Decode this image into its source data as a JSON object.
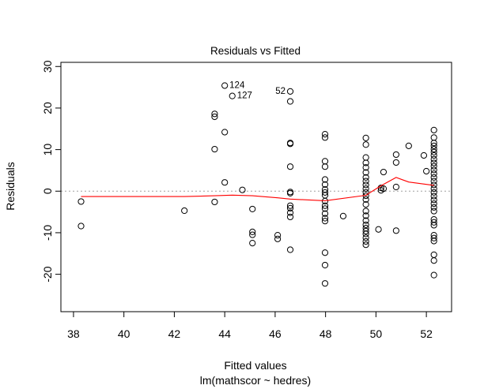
{
  "chart_data": {
    "type": "scatter",
    "title": "Residuals vs Fitted",
    "xlabel": "Fitted values",
    "subtitle": "lm(mathscor ~ hedres)",
    "ylabel": "Residuals",
    "xlim": [
      37.5,
      53
    ],
    "ylim": [
      -29,
      31
    ],
    "xticks": [
      38,
      40,
      42,
      44,
      46,
      48,
      50,
      52
    ],
    "yticks": [
      -20,
      -10,
      0,
      10,
      20,
      30
    ],
    "reference_line": {
      "y": 0,
      "style": "dotted",
      "color": "#a0a0a0"
    },
    "point_color": "#000000",
    "smooth_color": "#ff0000",
    "points": [
      [
        38.3,
        -2.5
      ],
      [
        38.3,
        -8.4
      ],
      [
        42.4,
        -4.7
      ],
      [
        43.6,
        18.6
      ],
      [
        43.6,
        17.9
      ],
      [
        43.6,
        10.1
      ],
      [
        43.6,
        -2.6
      ],
      [
        44.0,
        25.4
      ],
      [
        44.0,
        14.2
      ],
      [
        44.0,
        2.1
      ],
      [
        44.3,
        22.9
      ],
      [
        44.7,
        0.3
      ],
      [
        45.1,
        -4.3
      ],
      [
        45.1,
        -9.8
      ],
      [
        45.1,
        -10.5
      ],
      [
        45.1,
        -12.5
      ],
      [
        46.1,
        -10.6
      ],
      [
        46.1,
        -11.5
      ],
      [
        46.6,
        24.0
      ],
      [
        46.6,
        21.6
      ],
      [
        46.6,
        11.6
      ],
      [
        46.6,
        11.4
      ],
      [
        46.6,
        5.9
      ],
      [
        46.6,
        -0.2
      ],
      [
        46.6,
        -0.5
      ],
      [
        46.6,
        -3.5
      ],
      [
        46.6,
        -4.1
      ],
      [
        46.6,
        -5.2
      ],
      [
        46.6,
        -6.2
      ],
      [
        46.6,
        -14.1
      ],
      [
        47.98,
        13.7
      ],
      [
        47.98,
        12.9
      ],
      [
        47.98,
        7.2
      ],
      [
        47.98,
        5.9
      ],
      [
        47.98,
        2.8
      ],
      [
        47.98,
        1.6
      ],
      [
        47.98,
        0.4
      ],
      [
        47.98,
        -0.3
      ],
      [
        47.98,
        -1.0
      ],
      [
        47.98,
        -2.4
      ],
      [
        47.98,
        -3.5
      ],
      [
        47.98,
        -4.2
      ],
      [
        47.98,
        -5.4
      ],
      [
        47.98,
        -6.5
      ],
      [
        47.98,
        -7.2
      ],
      [
        47.98,
        -14.8
      ],
      [
        47.98,
        -17.8
      ],
      [
        47.98,
        -22.2
      ],
      [
        48.7,
        -6.0
      ],
      [
        49.6,
        12.8
      ],
      [
        49.6,
        11.2
      ],
      [
        49.6,
        8.1
      ],
      [
        49.6,
        6.8
      ],
      [
        49.6,
        5.7
      ],
      [
        49.6,
        4.5
      ],
      [
        49.6,
        3.3
      ],
      [
        49.6,
        2.4
      ],
      [
        49.6,
        1.5
      ],
      [
        49.6,
        0.6
      ],
      [
        49.6,
        -0.3
      ],
      [
        49.6,
        -1.1
      ],
      [
        49.6,
        -2.0
      ],
      [
        49.6,
        -3.2
      ],
      [
        49.6,
        -4.8
      ],
      [
        49.6,
        -5.9
      ],
      [
        49.6,
        -7.1
      ],
      [
        49.6,
        -8.1
      ],
      [
        49.6,
        -8.9
      ],
      [
        49.6,
        -9.6
      ],
      [
        49.6,
        -10.3
      ],
      [
        49.6,
        -11.2
      ],
      [
        49.6,
        -12.1
      ],
      [
        49.6,
        -12.9
      ],
      [
        50.1,
        -9.2
      ],
      [
        50.2,
        0.8
      ],
      [
        50.2,
        0.2
      ],
      [
        50.3,
        4.6
      ],
      [
        50.3,
        0.6
      ],
      [
        50.8,
        8.8
      ],
      [
        50.8,
        6.9
      ],
      [
        50.8,
        1.0
      ],
      [
        50.8,
        -9.5
      ],
      [
        51.3,
        10.9
      ],
      [
        51.9,
        8.6
      ],
      [
        52.0,
        4.8
      ],
      [
        52.3,
        14.7
      ],
      [
        52.3,
        12.9
      ],
      [
        52.3,
        11.6
      ],
      [
        52.3,
        10.9
      ],
      [
        52.3,
        10.1
      ],
      [
        52.3,
        9.4
      ],
      [
        52.3,
        8.6
      ],
      [
        52.3,
        7.7
      ],
      [
        52.3,
        6.8
      ],
      [
        52.3,
        6.0
      ],
      [
        52.3,
        5.1
      ],
      [
        52.3,
        4.2
      ],
      [
        52.3,
        3.3
      ],
      [
        52.3,
        2.4
      ],
      [
        52.3,
        1.5
      ],
      [
        52.3,
        0.6
      ],
      [
        52.3,
        -0.3
      ],
      [
        52.3,
        -1.2
      ],
      [
        52.3,
        -2.1
      ],
      [
        52.3,
        -3.0
      ],
      [
        52.3,
        -3.9
      ],
      [
        52.3,
        -4.8
      ],
      [
        52.3,
        -6.8
      ],
      [
        52.3,
        -7.5
      ],
      [
        52.3,
        -8.2
      ],
      [
        52.3,
        -10.6
      ],
      [
        52.3,
        -11.3
      ],
      [
        52.3,
        -12.0
      ],
      [
        52.3,
        -15.3
      ],
      [
        52.3,
        -16.7
      ],
      [
        52.3,
        -20.2
      ]
    ],
    "smooth": [
      [
        38.3,
        -1.3
      ],
      [
        42.4,
        -1.3
      ],
      [
        43.6,
        -1.1
      ],
      [
        44.3,
        -0.95
      ],
      [
        45.1,
        -1.1
      ],
      [
        46.1,
        -1.6
      ],
      [
        46.6,
        -1.9
      ],
      [
        47.98,
        -2.3
      ],
      [
        49.6,
        -1.0
      ],
      [
        50.2,
        1.3
      ],
      [
        50.8,
        3.3
      ],
      [
        51.3,
        2.2
      ],
      [
        52.3,
        1.4
      ]
    ],
    "annotations": [
      {
        "text": "124",
        "x": 44.0,
        "y": 25.4,
        "side": "right"
      },
      {
        "text": "127",
        "x": 44.3,
        "y": 22.9,
        "side": "right"
      },
      {
        "text": "52",
        "x": 46.6,
        "y": 24.0,
        "side": "left"
      }
    ]
  }
}
